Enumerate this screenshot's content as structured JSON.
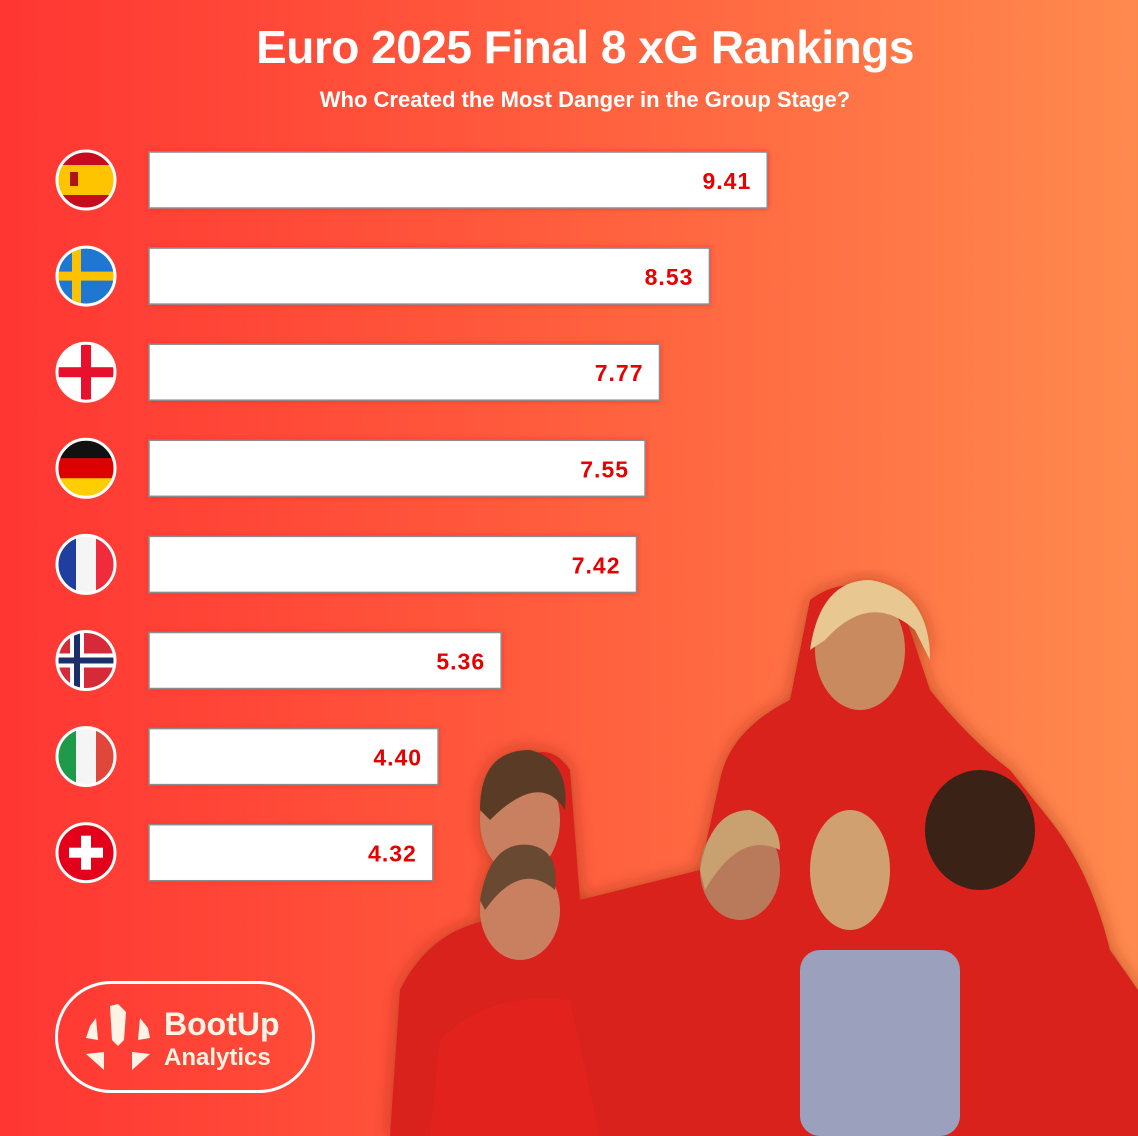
{
  "chart_data": {
    "type": "bar",
    "orientation": "horizontal",
    "title": "Euro 2025 Final 8 xG Rankings",
    "subtitle": "Who Created the Most Danger in the Group Stage?",
    "categories": [
      "flag-spain",
      "flag-sweden",
      "flag-england",
      "flag-germany",
      "flag-france",
      "flag-norway",
      "flag-italy",
      "flag-switzerland"
    ],
    "values": [
      9.41,
      8.53,
      7.77,
      7.55,
      7.42,
      5.36,
      4.4,
      4.32
    ],
    "labels": [
      "9.41",
      "8.53",
      "7.77",
      "7.55",
      "7.42",
      "5.36",
      "4.40",
      "4.32"
    ],
    "xlim": [
      0,
      10
    ],
    "grid": false,
    "bar_color": "#ffffff",
    "label_color": "#e60000"
  },
  "logo": {
    "line1": "BootUp",
    "line2": "Analytics"
  }
}
